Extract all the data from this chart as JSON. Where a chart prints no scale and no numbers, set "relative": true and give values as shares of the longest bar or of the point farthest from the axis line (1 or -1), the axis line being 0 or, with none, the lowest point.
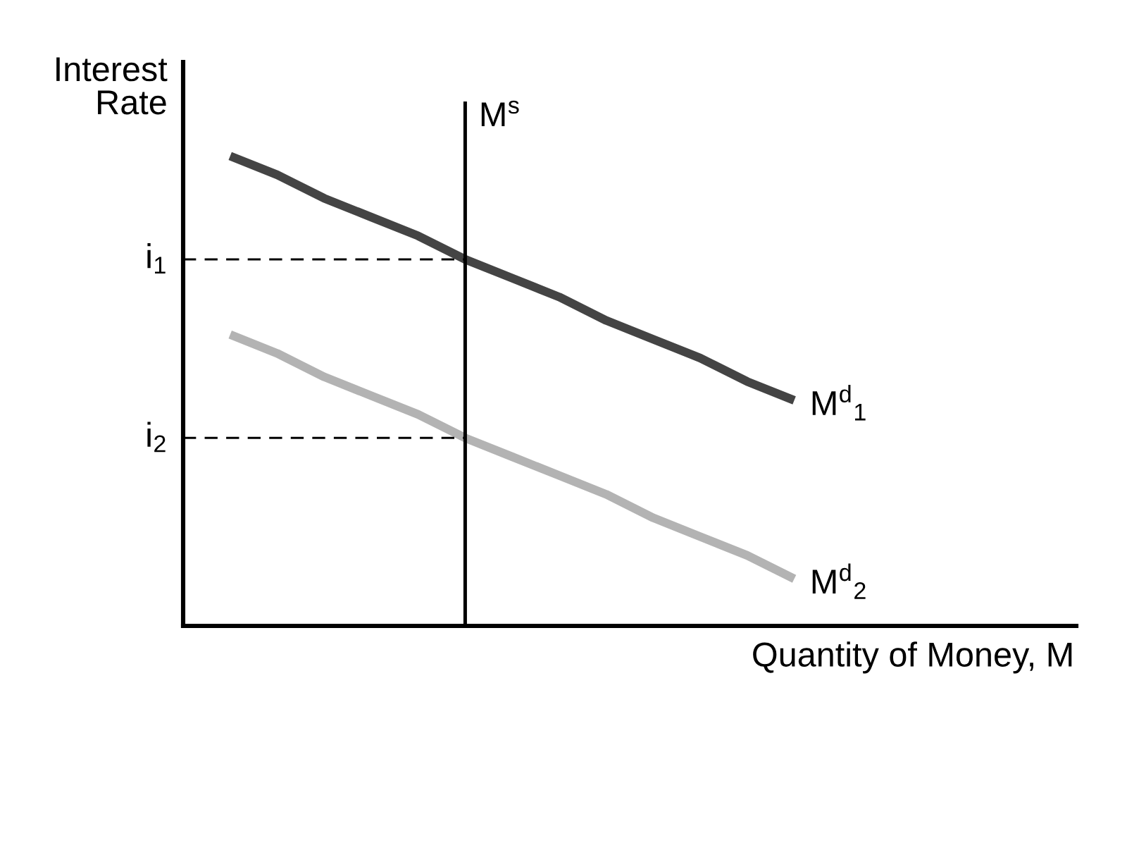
{
  "chart_data": {
    "type": "line",
    "relative": true,
    "xlabel": "Quantity of Money, M",
    "ylabel": "Interest\nRate",
    "categories": [
      null,
      null,
      null,
      null,
      null,
      null,
      null,
      null,
      null,
      null,
      null,
      null,
      null,
      null,
      null,
      null,
      null,
      null
    ],
    "series": [
      {
        "name": "M$^{d}$$_{1}$",
        "color": "#444444",
        "values": [
          1.0,
          0.96,
          0.91,
          0.87,
          0.83,
          0.78,
          0.74,
          0.7,
          0.65,
          0.61,
          0.57,
          0.52,
          0.48,
          null,
          null,
          null,
          null,
          null
        ]
      },
      {
        "name": "M$^{d}$$_{2}$",
        "color": "#b3b3b3",
        "values": [
          0.62,
          0.58,
          0.53,
          0.49,
          0.45,
          0.4,
          0.36,
          0.32,
          0.28,
          0.23,
          0.19,
          0.15,
          0.1,
          null,
          null,
          null,
          null,
          null
        ]
      }
    ],
    "ref_lines": [
      {
        "axis": "y",
        "value": 0.78,
        "label": "i$_{1}$",
        "color": "#000000",
        "line_style": "dashed"
      },
      {
        "axis": "y",
        "value": 0.4,
        "label": "i$_{2}$",
        "color": "#000000",
        "line_style": "dashed"
      }
    ],
    "annotations": [
      "M$^{s}$"
    ]
  }
}
